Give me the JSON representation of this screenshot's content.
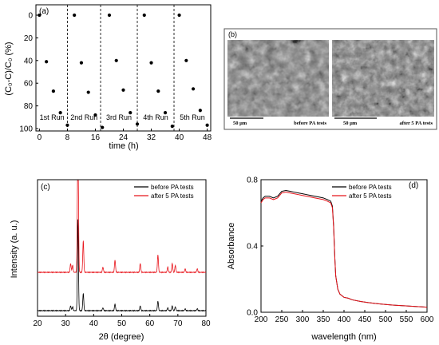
{
  "chart_data": [
    {
      "panel": "(a)",
      "type": "scatter",
      "xlabel": "time (h)",
      "ylabel": "(C₀-C)/C₀ (%)",
      "xlim": [
        -1,
        49
      ],
      "ylim": [
        0,
        100
      ],
      "y_inverted": true,
      "xticks": [
        0,
        8,
        16,
        24,
        32,
        40,
        48
      ],
      "yticks": [
        0,
        20,
        40,
        60,
        80,
        100
      ],
      "dividers": [
        8,
        17.5,
        28,
        38.5
      ],
      "runs": [
        "1st Run",
        "2nd Run",
        "3rd Run",
        "4th Run",
        "5th Run"
      ],
      "series": [
        {
          "values": [
            [
              0,
              0
            ],
            [
              2,
              41
            ],
            [
              4,
              67
            ],
            [
              6,
              86
            ],
            [
              8,
              97
            ],
            [
              10,
              0
            ],
            [
              12,
              42
            ],
            [
              14,
              68
            ],
            [
              16,
              88
            ],
            [
              18,
              99
            ],
            [
              20,
              0
            ],
            [
              22,
              40
            ],
            [
              24,
              66
            ],
            [
              26,
              86
            ],
            [
              28,
              96
            ],
            [
              30,
              0
            ],
            [
              32,
              42
            ],
            [
              34,
              67
            ],
            [
              36,
              86
            ],
            [
              38,
              98
            ],
            [
              40,
              0
            ],
            [
              42,
              40
            ],
            [
              44,
              65
            ],
            [
              46,
              84
            ],
            [
              48,
              97
            ]
          ]
        }
      ]
    },
    {
      "panel": "(b)",
      "type": "image",
      "images": [
        {
          "scale": "50 μm",
          "caption": "before PA tests"
        },
        {
          "scale": "50 μm",
          "caption": "after 5 PA tests"
        }
      ]
    },
    {
      "panel": "(c)",
      "type": "line",
      "xlabel": "2θ (degree)",
      "ylabel": "Intensity (a. u.)",
      "xlim": [
        20,
        80
      ],
      "xticks": [
        20,
        30,
        40,
        50,
        60,
        70,
        80
      ],
      "legend_position": "top-right",
      "peaks": [
        [
          31.8,
          0.05
        ],
        [
          32.5,
          0.04
        ],
        [
          34.4,
          0.95
        ],
        [
          36.3,
          0.18
        ],
        [
          47.6,
          0.07
        ],
        [
          56.6,
          0.05
        ],
        [
          62.9,
          0.1
        ],
        [
          66.4,
          0.03
        ],
        [
          68.0,
          0.05
        ],
        [
          69.1,
          0.04
        ],
        [
          72.6,
          0.02
        ],
        [
          76.9,
          0.02
        ],
        [
          43.3,
          0.03
        ]
      ],
      "series": [
        {
          "name": "before PA tests",
          "color": "#000000"
        },
        {
          "name": "after 5 PA tests",
          "color": "#e8141b"
        }
      ]
    },
    {
      "panel": "(d)",
      "type": "line",
      "xlabel": "wavelength (nm)",
      "ylabel": "Absorbance",
      "xlim": [
        200,
        600
      ],
      "ylim": [
        0,
        0.8
      ],
      "xticks": [
        200,
        250,
        300,
        350,
        400,
        450,
        500,
        550,
        600
      ],
      "yticks": [
        0.0,
        0.4,
        0.8
      ],
      "legend_position": "top-right",
      "series": [
        {
          "name": "before PA tests",
          "color": "#000000",
          "x": [
            200,
            205,
            210,
            220,
            230,
            240,
            250,
            260,
            270,
            280,
            290,
            300,
            310,
            320,
            330,
            340,
            350,
            360,
            368,
            372,
            375,
            378,
            380,
            385,
            390,
            395,
            400,
            410,
            420,
            440,
            460,
            480,
            500,
            520,
            540,
            560,
            580,
            600
          ],
          "y": [
            0.67,
            0.69,
            0.7,
            0.7,
            0.69,
            0.7,
            0.73,
            0.735,
            0.73,
            0.725,
            0.72,
            0.715,
            0.71,
            0.705,
            0.7,
            0.695,
            0.69,
            0.68,
            0.67,
            0.64,
            0.52,
            0.32,
            0.22,
            0.14,
            0.11,
            0.1,
            0.09,
            0.085,
            0.075,
            0.065,
            0.058,
            0.052,
            0.047,
            0.043,
            0.04,
            0.037,
            0.034,
            0.031
          ]
        },
        {
          "name": "after 5 PA tests",
          "color": "#e8141b",
          "x": [
            200,
            205,
            210,
            220,
            230,
            240,
            250,
            260,
            270,
            280,
            290,
            300,
            310,
            320,
            330,
            340,
            350,
            360,
            368,
            372,
            375,
            378,
            380,
            385,
            390,
            395,
            400,
            410,
            420,
            440,
            460,
            480,
            500,
            520,
            540,
            560,
            580,
            600
          ],
          "y": [
            0.66,
            0.68,
            0.69,
            0.69,
            0.68,
            0.69,
            0.72,
            0.725,
            0.72,
            0.715,
            0.71,
            0.705,
            0.7,
            0.695,
            0.69,
            0.685,
            0.68,
            0.67,
            0.66,
            0.63,
            0.51,
            0.32,
            0.22,
            0.14,
            0.11,
            0.1,
            0.09,
            0.085,
            0.075,
            0.065,
            0.058,
            0.052,
            0.047,
            0.043,
            0.04,
            0.037,
            0.034,
            0.031
          ]
        }
      ]
    }
  ]
}
